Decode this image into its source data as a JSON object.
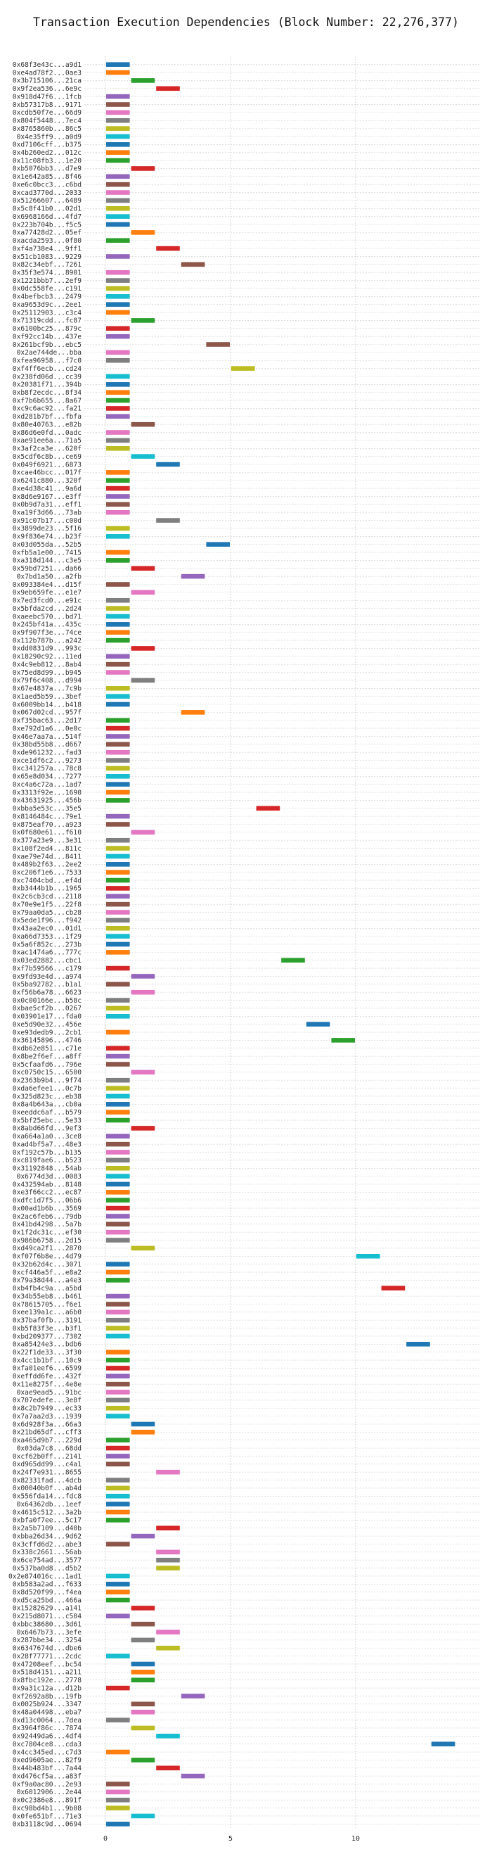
{
  "chart_data": {
    "type": "bar",
    "orientation": "horizontal",
    "title": "Transaction Execution Dependencies (Block Number: 22,276,377)",
    "xlabel": "",
    "ylabel": "",
    "xlim": [
      -1,
      15
    ],
    "xticks": [
      0,
      5,
      10
    ],
    "grid": true,
    "colors": {
      "palette": [
        "#1f77b4",
        "#ff7f0e",
        "#2ca02c",
        "#d62728",
        "#9467bd",
        "#8c564b",
        "#e377c2",
        "#7f7f7f",
        "#bcbd22",
        "#17becf"
      ],
      "grid": "#cccccc"
    },
    "categories": [
      "0x68f3e43c...a9d1",
      "0xe4ad78f2...0ae3",
      "0x3b715106...21ca",
      "0x9f2ea536...6e9c",
      "0x918d47f6...1fcb",
      "0xb57317b8...9171",
      "0xcdb50f7e...66d9",
      "0x804f5448...7ec4",
      "0x8765860b...86c5",
      "0x4e35ff9...a0d9",
      "0xd7106cff...b375",
      "0x4b260ed2...012c",
      "0x11c08fb3...1e20",
      "0xb5076bb3...d7e9",
      "0x1e642a85...8f46",
      "0xe6c0bcc3...c6bd",
      "0xcad3770d...2033",
      "0x51266607...6489",
      "0x5c8f41b0...02d1",
      "0x6968166d...4fd7",
      "0x223b704b...f5c5",
      "0xa77428d2...05ef",
      "0xacda2593...0f80",
      "0xf4a738e4...9ff1",
      "0x51cb1083...9229",
      "0x82c34ebf...7261",
      "0x35f3e574...8901",
      "0x1221bbb7...2ef9",
      "0x0dc558fe...c191",
      "0x4befbcb3...2479",
      "0xa9653d9c...2ee1",
      "0x25112903...c3c4",
      "0x71319cdd...fc87",
      "0x6100bc25...879c",
      "0xf92cc14b...437e",
      "0x261bcf9b...ebc5",
      "0x2ae744de...bba",
      "0xfea96958...f7c0",
      "0xf4ff6ecb...cd24",
      "0x238fd06d...cc39",
      "0x20381f71...394b",
      "0xb8f2ecdc...8f34",
      "0xf7b6b655...8a67",
      "0xc9c6ac92...fa21",
      "0xd281b7bf...fbfa",
      "0x80e40763...e82b",
      "0x86d6e0fd...0adc",
      "0xae91ee6a...71a5",
      "0x3af2ca3e...620f",
      "0x5cdf6c8b...ce69",
      "0x049f6921...6873",
      "0xcae46bcc...017f",
      "0x6241c880...320f",
      "0xe4d38c41...9a6d",
      "0x8d6e9167...e3ff",
      "0x0b9d7a31...eff1",
      "0xa19f3d66...73ab",
      "0x91c07b17...c00d",
      "0x3899de23...5f16",
      "0x9f836e74...b23f",
      "0x03d055da...52b5",
      "0xfb5a1e00...7415",
      "0xa318d144...c3e5",
      "0x59bd7251...da66",
      "0x7bd1a50...a2fb",
      "0x093384e4...d15f",
      "0x9eb659fe...e1e7",
      "0x7ed3fcd0...e91c",
      "0x5bfda2cd...2d24",
      "0xaeebc570...bd71",
      "0x245bf41a...435c",
      "0x9f907f3e...74ce",
      "0x112b787b...a242",
      "0xdd0831d9...993c",
      "0x18290c92...11ed",
      "0x4c9eb812...8ab4",
      "0x75ed8d99...b945",
      "0x79f6c408...d994",
      "0x67e4837a...7c9b",
      "0x1aed5b59...3bef",
      "0x6009bb14...b418",
      "0x067d02cd...957f",
      "0xf35bac63...2d17",
      "0xe792d1a6...0e0c",
      "0x46e7aa7a...514f",
      "0x38bd55b8...d667",
      "0xde961232...fad3",
      "0xce1df6c2...9273",
      "0xc341257a...78c8",
      "0x65e8d034...7277",
      "0xc4a6c72a...1ad7",
      "0x3313f92e...1690",
      "0x43631925...456b",
      "0xbba5e53c...35e5",
      "0x8146484c...79e1",
      "0x875eaf70...a923",
      "0x0f680e61...f610",
      "0x377a23e9...3e31",
      "0x108f2ed4...811c",
      "0xae79e74d...8411",
      "0x489b2f63...2ee2",
      "0xc206f1e6...7533",
      "0xc7404cbd...ef4d",
      "0xb3444b1b...1965",
      "0x2c6cb3cd...2118",
      "0x70e9e1f5...22f8",
      "0x79aa0da5...cb28",
      "0x5ede1f96...f942",
      "0x43aa2ec0...01d1",
      "0xa66d7353...1f29",
      "0x5a6f852c...273b",
      "0xac1474a6...777c",
      "0x03ed2882...cbc1",
      "0xf7b59566...c179",
      "0x9fd93e4d...a974",
      "0x5ba92782...b1a1",
      "0xf56b6a78...6623",
      "0x0c00166e...b58c",
      "0xbae5cf2b...0267",
      "0x03901e17...fda0",
      "0xe5d90e32...456e",
      "0xe93dedb9...2cb1",
      "0x36145896...4746",
      "0xdb62e851...c71e",
      "0x8be2f6ef...a8ff",
      "0x5cfaafd6...796e",
      "0xc0750c15...6500",
      "0x2363b9b4...9f74",
      "0xda6efee1...0c7b",
      "0x325d823c...eb38",
      "0x8a4b643a...cb0a",
      "0xeeddc6af...b579",
      "0x5bf25ebc...5e33",
      "0x8abd66fd...9ef3",
      "0xa664a1a0...3ce8",
      "0xad4bf5a7...48e3",
      "0xf192c57b...b135",
      "0xc819fae6...b523",
      "0x31192848...54ab",
      "0x6774d3d...0083",
      "0x432594ab...8148",
      "0xe3f66cc2...ec87",
      "0xdfc1d7f5...06b6",
      "0x00ad1b6b...3569",
      "0x2ac6feb6...79db",
      "0x41bd4298...5a7b",
      "0x1f2dc31c...ef30",
      "0x986b6758...2d15",
      "0xd49ca2f1...2870",
      "0xf07f6b8e...4d79",
      "0x32b62d4c...3071",
      "0xcf446a5f...e8a2",
      "0x79a38d44...a4e3",
      "0xb4fb4c9a...a5bd",
      "0x34b55eb8...b461",
      "0x78615705...f6e1",
      "0xee139a1c...a6b0",
      "0x37baf0fb...3191",
      "0xb5f83f3e...b3f1",
      "0xbd209377...7302",
      "0xa85424e3...bdb6",
      "0x22f1de33...3f30",
      "0x4cc1b1bf...10c9",
      "0xfa01eef6...6599",
      "0xeffdd6fe...432f",
      "0x11e8275f...4e8e",
      "0xae9ead5...91bc",
      "0x707edefe...3e8f",
      "0x8c2b7949...ec33",
      "0x7a7aa2d3...1939",
      "0x6d928f3a...66a3",
      "0x21bd65df...cff3",
      "0xa465d9b7...229d",
      "0x03da7c8...68dd",
      "0xcf62b0ff...2141",
      "0xd965dd99...c4a1",
      "0x24f7e931...8655",
      "0x82331fad...4dcb",
      "0x00040b0f...ab4d",
      "0x556fda14...fdc8",
      "0x64362db...1eef",
      "0x4615c512...3a2b",
      "0xbfa0f7ee...5c17",
      "0x2a5b7109...d40b",
      "0xbba26d34...9d62",
      "0x3cffd6d2...abe3",
      "0x338c2661...56ab",
      "0x6ce754ad...3577",
      "0x537ba0d8...d5b2",
      "0x2e874016c...1ad1",
      "0xb583a2ad...f633",
      "0x8d520f99...f4ea",
      "0xd5ca25bd...466a",
      "0x15282629...a141",
      "0x215d8071...c504",
      "0xbbc38680...3d61",
      "0x6467b73...3efe",
      "0x287bbe34...3254",
      "0x6347674d...dbe6",
      "0x28f77771...2cdc",
      "0x47208eef...bc54",
      "0x518d4151...a211",
      "0x8fbc192e...2778",
      "0x9a31c12a...d12b",
      "0xf2692a8b...19fb",
      "0x0025b924...3347",
      "0x48a04498...eba7",
      "0xd13c0064...7dea",
      "0x3964f86c...7874",
      "0x92449da6...4df4",
      "0xc7804ce8...cda3",
      "0x4cc345ed...c7d3",
      "0xed9605ae...82f9",
      "0x44b483bf...7a44",
      "0xd476cf5a...a83f",
      "0xf9a0ac80...2e93",
      "0x6012906...2e44",
      "0x0c2386e8...891f",
      "0xc98bd4b1...9b08",
      "0x0fe651bf...71e3",
      "0xb3118c9d...0694"
    ],
    "series": [
      {
        "values": [
          [
            0,
            1
          ],
          [
            0,
            1
          ],
          [
            1,
            2
          ],
          [
            2,
            3
          ],
          [
            0,
            1
          ],
          [
            0,
            1
          ],
          [
            0,
            1
          ],
          [
            0,
            1
          ],
          [
            0,
            1
          ],
          [
            0,
            1
          ],
          [
            0,
            1
          ],
          [
            0,
            1
          ],
          [
            0,
            1
          ],
          [
            1,
            2
          ],
          [
            0,
            1
          ],
          [
            0,
            1
          ],
          [
            0,
            1
          ],
          [
            0,
            1
          ],
          [
            0,
            1
          ],
          [
            0,
            1
          ],
          [
            0,
            1
          ],
          [
            1,
            2
          ],
          [
            0,
            1
          ],
          [
            2,
            3
          ],
          [
            0,
            1
          ],
          [
            3,
            4
          ],
          [
            0,
            1
          ],
          [
            0,
            1
          ],
          [
            0,
            1
          ],
          [
            0,
            1
          ],
          [
            0,
            1
          ],
          [
            0,
            1
          ],
          [
            1,
            2
          ],
          [
            0,
            1
          ],
          [
            0,
            1
          ],
          [
            4,
            5
          ],
          [
            0,
            1
          ],
          [
            0,
            1
          ],
          [
            5,
            6
          ],
          [
            0,
            1
          ],
          [
            0,
            1
          ],
          [
            0,
            1
          ],
          [
            0,
            1
          ],
          [
            0,
            1
          ],
          [
            0,
            1
          ],
          [
            1,
            2
          ],
          [
            0,
            1
          ],
          [
            0,
            1
          ],
          [
            0,
            1
          ],
          [
            1,
            2
          ],
          [
            2,
            3
          ],
          [
            0,
            1
          ],
          [
            0,
            1
          ],
          [
            0,
            1
          ],
          [
            0,
            1
          ],
          [
            0,
            1
          ],
          [
            0,
            1
          ],
          [
            2,
            3
          ],
          [
            0,
            1
          ],
          [
            0,
            1
          ],
          [
            4,
            5
          ],
          [
            0,
            1
          ],
          [
            0,
            1
          ],
          [
            1,
            2
          ],
          [
            3,
            4
          ],
          [
            0,
            1
          ],
          [
            1,
            2
          ],
          [
            0,
            1
          ],
          [
            0,
            1
          ],
          [
            0,
            1
          ],
          [
            0,
            1
          ],
          [
            0,
            1
          ],
          [
            0,
            1
          ],
          [
            1,
            2
          ],
          [
            0,
            1
          ],
          [
            0,
            1
          ],
          [
            0,
            1
          ],
          [
            1,
            2
          ],
          [
            0,
            1
          ],
          [
            0,
            1
          ],
          [
            0,
            1
          ],
          [
            3,
            4
          ],
          [
            0,
            1
          ],
          [
            0,
            1
          ],
          [
            0,
            1
          ],
          [
            0,
            1
          ],
          [
            0,
            1
          ],
          [
            0,
            1
          ],
          [
            0,
            1
          ],
          [
            0,
            1
          ],
          [
            0,
            1
          ],
          [
            0,
            1
          ],
          [
            0,
            1
          ],
          [
            6,
            7
          ],
          [
            0,
            1
          ],
          [
            0,
            1
          ],
          [
            1,
            2
          ],
          [
            0,
            1
          ],
          [
            0,
            1
          ],
          [
            0,
            1
          ],
          [
            0,
            1
          ],
          [
            0,
            1
          ],
          [
            0,
            1
          ],
          [
            0,
            1
          ],
          [
            0,
            1
          ],
          [
            0,
            1
          ],
          [
            0,
            1
          ],
          [
            0,
            1
          ],
          [
            0,
            1
          ],
          [
            0,
            1
          ],
          [
            0,
            1
          ],
          [
            0,
            1
          ],
          [
            7,
            8
          ],
          [
            0,
            1
          ],
          [
            1,
            2
          ],
          [
            0,
            1
          ],
          [
            1,
            2
          ],
          [
            0,
            1
          ],
          [
            0,
            1
          ],
          [
            0,
            1
          ],
          [
            8,
            9
          ],
          [
            0,
            1
          ],
          [
            9,
            10
          ],
          [
            0,
            1
          ],
          [
            0,
            1
          ],
          [
            0,
            1
          ],
          [
            1,
            2
          ],
          [
            0,
            1
          ],
          [
            0,
            1
          ],
          [
            0,
            1
          ],
          [
            0,
            1
          ],
          [
            0,
            1
          ],
          [
            0,
            1
          ],
          [
            1,
            2
          ],
          [
            0,
            1
          ],
          [
            0,
            1
          ],
          [
            0,
            1
          ],
          [
            0,
            1
          ],
          [
            0,
            1
          ],
          [
            0,
            1
          ],
          [
            0,
            1
          ],
          [
            0,
            1
          ],
          [
            0,
            1
          ],
          [
            0,
            1
          ],
          [
            0,
            1
          ],
          [
            0,
            1
          ],
          [
            0,
            1
          ],
          [
            0,
            1
          ],
          [
            1,
            2
          ],
          [
            10,
            11
          ],
          [
            0,
            1
          ],
          [
            0,
            1
          ],
          [
            0,
            1
          ],
          [
            11,
            12
          ],
          [
            0,
            1
          ],
          [
            0,
            1
          ],
          [
            0,
            1
          ],
          [
            0,
            1
          ],
          [
            0,
            1
          ],
          [
            0,
            1
          ],
          [
            12,
            13
          ],
          [
            0,
            1
          ],
          [
            0,
            1
          ],
          [
            0,
            1
          ],
          [
            0,
            1
          ],
          [
            0,
            1
          ],
          [
            0,
            1
          ],
          [
            0,
            1
          ],
          [
            0,
            1
          ],
          [
            0,
            1
          ],
          [
            1,
            2
          ],
          [
            1,
            2
          ],
          [
            0,
            1
          ],
          [
            0,
            1
          ],
          [
            0,
            1
          ],
          [
            0,
            1
          ],
          [
            2,
            3
          ],
          [
            0,
            1
          ],
          [
            0,
            1
          ],
          [
            0,
            1
          ],
          [
            0,
            1
          ],
          [
            0,
            1
          ],
          [
            0,
            1
          ],
          [
            2,
            3
          ],
          [
            1,
            2
          ],
          [
            0,
            1
          ],
          [
            2,
            3
          ],
          [
            2,
            3
          ],
          [
            2,
            3
          ],
          [
            0,
            1
          ],
          [
            0,
            1
          ],
          [
            0,
            1
          ],
          [
            0,
            1
          ],
          [
            1,
            2
          ],
          [
            0,
            1
          ],
          [
            1,
            2
          ],
          [
            2,
            3
          ],
          [
            1,
            2
          ],
          [
            2,
            3
          ],
          [
            0,
            1
          ],
          [
            1,
            2
          ],
          [
            1,
            2
          ],
          [
            1,
            2
          ],
          [
            0,
            1
          ],
          [
            3,
            4
          ],
          [
            1,
            2
          ],
          [
            1,
            2
          ],
          [
            0,
            1
          ],
          [
            1,
            2
          ],
          [
            2,
            3
          ],
          [
            13,
            14
          ],
          [
            0,
            1
          ],
          [
            1,
            2
          ],
          [
            2,
            3
          ],
          [
            3,
            4
          ],
          [
            0,
            1
          ],
          [
            0,
            1
          ],
          [
            0,
            1
          ],
          [
            0,
            1
          ],
          [
            1,
            2
          ],
          [
            0,
            1
          ]
        ]
      }
    ]
  }
}
